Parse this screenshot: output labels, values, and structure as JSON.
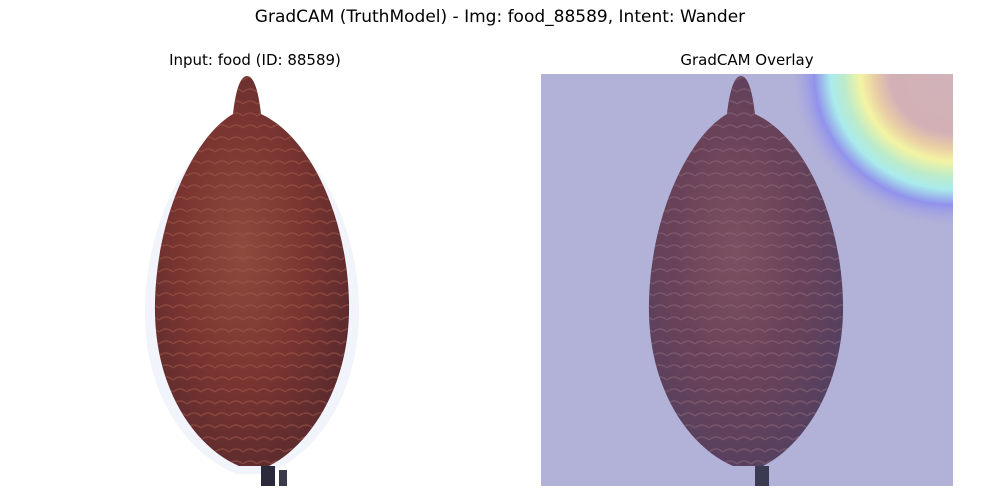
{
  "figure": {
    "title": "GradCAM (TruthModel) - Img: food_88589, Intent: Wander"
  },
  "panels": {
    "input": {
      "title": "Input: food (ID: 88589)"
    },
    "overlay": {
      "title": "GradCAM Overlay"
    }
  },
  "colors": {
    "fruit_dark": "#5a2a2e",
    "fruit_mid": "#7a3530",
    "fruit_light": "#8e4a3d",
    "overlay_base": "#b2b2d8",
    "heat_hot": "#d6b3b3",
    "heat_yellow": "#ffff9a",
    "heat_cyan": "#a8f5f0",
    "heat_blue": "#8c8cf0"
  }
}
